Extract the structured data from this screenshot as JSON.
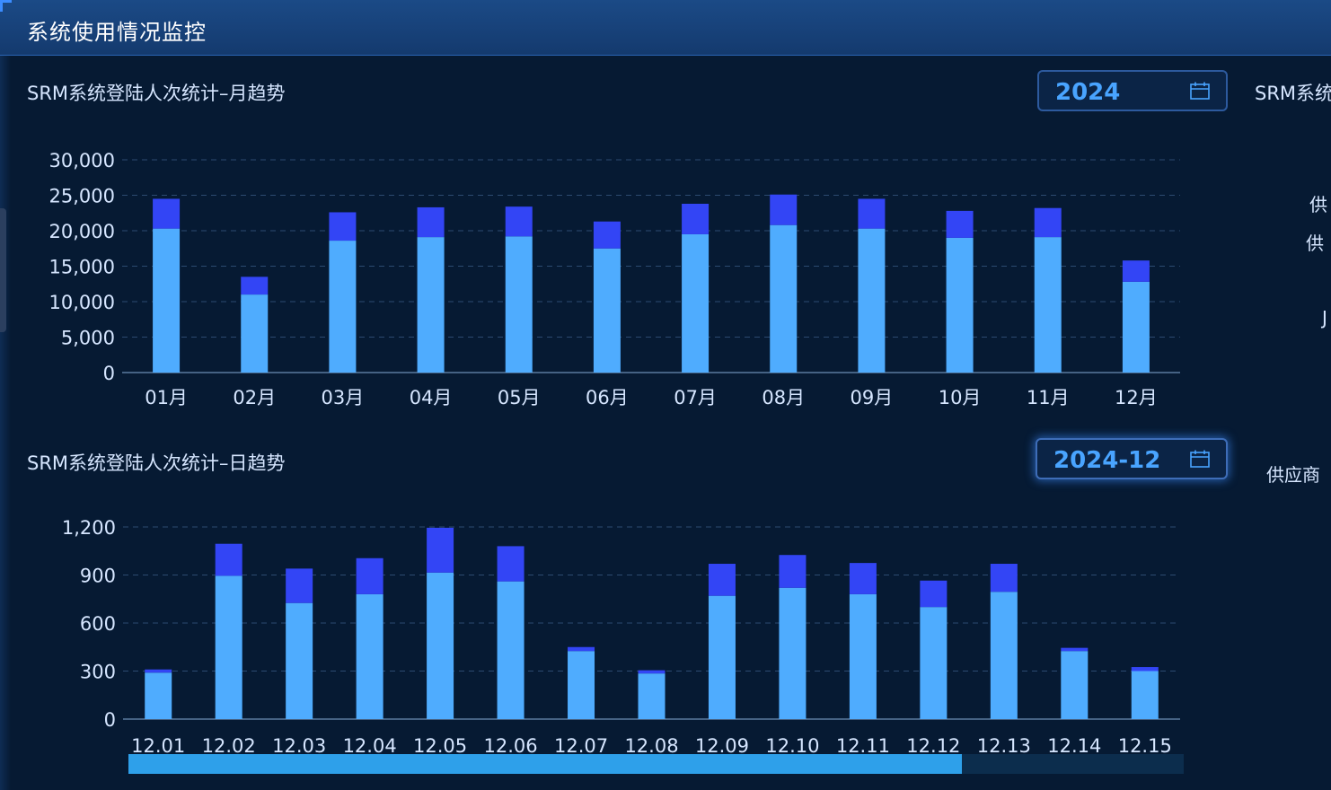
{
  "header": {
    "title": "系统使用情况监控"
  },
  "monthly": {
    "title": "SRM系统登陆人次统计–月趋势",
    "year_value": "2024",
    "chart_data": {
      "type": "bar",
      "stacked": true,
      "categories": [
        "01月",
        "02月",
        "03月",
        "04月",
        "05月",
        "06月",
        "07月",
        "08月",
        "09月",
        "10月",
        "11月",
        "12月"
      ],
      "series": [
        {
          "color": "#4facfe",
          "values": [
            20300,
            11000,
            18600,
            19100,
            19200,
            17500,
            19500,
            20800,
            20300,
            19000,
            19100,
            12800
          ]
        },
        {
          "color": "#3345f5",
          "values": [
            4200,
            2500,
            4000,
            4200,
            4200,
            3800,
            4300,
            4300,
            4200,
            3800,
            4100,
            3000
          ]
        }
      ],
      "yticks": [
        "0",
        "5,000",
        "10,000",
        "15,000",
        "20,000",
        "25,000",
        "30,000"
      ],
      "ylim": [
        0,
        30000
      ],
      "grid": true
    }
  },
  "daily": {
    "title": "SRM系统登陆人次统计–日趋势",
    "month_value": "2024-12",
    "chart_data": {
      "type": "bar",
      "stacked": true,
      "categories": [
        "12.01",
        "12.02",
        "12.03",
        "12.04",
        "12.05",
        "12.06",
        "12.07",
        "12.08",
        "12.09",
        "12.10",
        "12.11",
        "12.12",
        "12.13",
        "12.14",
        "12.15"
      ],
      "series": [
        {
          "color": "#4facfe",
          "values": [
            290,
            895,
            725,
            780,
            915,
            860,
            425,
            285,
            770,
            820,
            780,
            700,
            795,
            425,
            300
          ]
        },
        {
          "color": "#3345f5",
          "values": [
            20,
            200,
            215,
            225,
            280,
            220,
            25,
            20,
            200,
            205,
            195,
            165,
            175,
            20,
            25
          ]
        }
      ],
      "yticks": [
        "0",
        "300",
        "600",
        "900",
        "1,200"
      ],
      "ylim": [
        0,
        1200
      ],
      "grid": true
    },
    "scroll_fraction": 0.79
  },
  "right_partial": {
    "title": "SRM系统",
    "label_1": "供",
    "label_2": "供",
    "label_3": "J",
    "label_4": "供应商"
  }
}
